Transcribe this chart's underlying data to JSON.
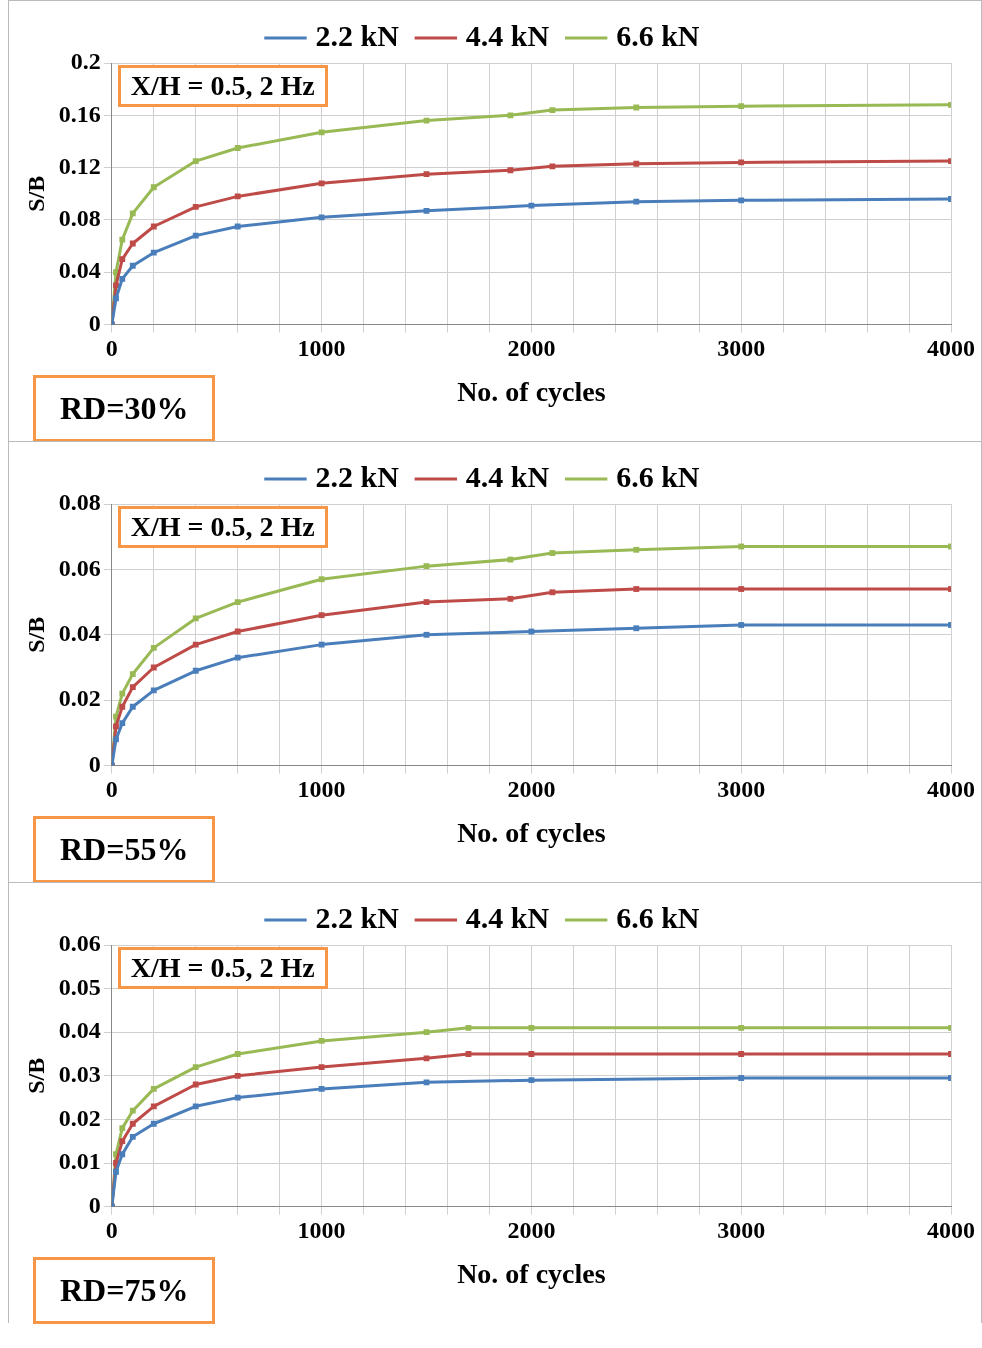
{
  "chart_data": [
    {
      "type": "line",
      "xlabel": "No. of cycles",
      "ylabel": "S/B",
      "annotations": [
        "X/H = 0.5, 2 Hz",
        "RD=30%"
      ],
      "legend": "top",
      "grid": true,
      "marker": "square",
      "line_style": "solid",
      "xlim": [
        0,
        4000
      ],
      "xticks": [
        0,
        {
          "value": 200,
          "label": null
        },
        {
          "value": 400,
          "label": null
        },
        {
          "value": 600,
          "label": null
        },
        {
          "value": 800,
          "label": null
        },
        1000,
        {
          "value": 1200,
          "label": null
        },
        {
          "value": 1400,
          "label": null
        },
        {
          "value": 1600,
          "label": null
        },
        {
          "value": 1800,
          "label": null
        },
        2000,
        {
          "value": 2200,
          "label": null
        },
        {
          "value": 2400,
          "label": null
        },
        {
          "value": 2600,
          "label": null
        },
        {
          "value": 2800,
          "label": null
        },
        3000,
        {
          "value": 3200,
          "label": null
        },
        {
          "value": 3400,
          "label": null
        },
        {
          "value": 3600,
          "label": null
        },
        {
          "value": 3800,
          "label": null
        },
        4000
      ],
      "ylim": [
        0,
        0.2
      ],
      "yticks": [
        0,
        0.04,
        0.08,
        0.12,
        0.16,
        0.2
      ],
      "series": [
        {
          "name": "2.2 kN",
          "color": "#4a7ebb",
          "x": [
            0,
            20,
            50,
            100,
            200,
            400,
            600,
            1000,
            1500,
            2000,
            2500,
            3000,
            4000
          ],
          "values": [
            0,
            0.02,
            0.035,
            0.045,
            0.055,
            0.068,
            0.075,
            0.082,
            0.087,
            0.091,
            0.094,
            0.095,
            0.096
          ]
        },
        {
          "name": "4.4 kN",
          "color": "#be4b48",
          "x": [
            0,
            20,
            50,
            100,
            200,
            400,
            600,
            1000,
            1500,
            1900,
            2100,
            2500,
            3000,
            4000
          ],
          "values": [
            0,
            0.03,
            0.05,
            0.062,
            0.075,
            0.09,
            0.098,
            0.108,
            0.115,
            0.118,
            0.121,
            0.123,
            0.124,
            0.125
          ]
        },
        {
          "name": "6.6 kN",
          "color": "#98b954",
          "x": [
            0,
            20,
            50,
            100,
            200,
            400,
            600,
            1000,
            1500,
            1900,
            2100,
            2500,
            3000,
            4000
          ],
          "values": [
            0,
            0.04,
            0.065,
            0.085,
            0.105,
            0.125,
            0.135,
            0.147,
            0.156,
            0.16,
            0.164,
            0.166,
            0.167,
            0.168
          ]
        }
      ]
    },
    {
      "type": "line",
      "xlabel": "No. of cycles",
      "ylabel": "S/B",
      "annotations": [
        "X/H = 0.5,  2 Hz",
        "RD=55%"
      ],
      "legend": "top",
      "grid": true,
      "marker": "square",
      "line_style": "solid",
      "xlim": [
        0,
        4000
      ],
      "xticks": [
        0,
        {
          "value": 200,
          "label": null
        },
        {
          "value": 400,
          "label": null
        },
        {
          "value": 600,
          "label": null
        },
        {
          "value": 800,
          "label": null
        },
        1000,
        {
          "value": 1200,
          "label": null
        },
        {
          "value": 1400,
          "label": null
        },
        {
          "value": 1600,
          "label": null
        },
        {
          "value": 1800,
          "label": null
        },
        2000,
        {
          "value": 2200,
          "label": null
        },
        {
          "value": 2400,
          "label": null
        },
        {
          "value": 2600,
          "label": null
        },
        {
          "value": 2800,
          "label": null
        },
        3000,
        {
          "value": 3200,
          "label": null
        },
        {
          "value": 3400,
          "label": null
        },
        {
          "value": 3600,
          "label": null
        },
        {
          "value": 3800,
          "label": null
        },
        4000
      ],
      "ylim": [
        0,
        0.08
      ],
      "yticks": [
        0,
        0.02,
        0.04,
        0.06,
        0.08
      ],
      "series": [
        {
          "name": "2.2 kN",
          "color": "#4a7ebb",
          "x": [
            0,
            20,
            50,
            100,
            200,
            400,
            600,
            1000,
            1500,
            2000,
            2500,
            3000,
            4000
          ],
          "values": [
            0,
            0.008,
            0.013,
            0.018,
            0.023,
            0.029,
            0.033,
            0.037,
            0.04,
            0.041,
            0.042,
            0.043,
            0.043
          ]
        },
        {
          "name": "4.4 kN",
          "color": "#be4b48",
          "x": [
            0,
            20,
            50,
            100,
            200,
            400,
            600,
            1000,
            1500,
            1900,
            2100,
            2500,
            3000,
            4000
          ],
          "values": [
            0,
            0.012,
            0.018,
            0.024,
            0.03,
            0.037,
            0.041,
            0.046,
            0.05,
            0.051,
            0.053,
            0.054,
            0.054,
            0.054
          ]
        },
        {
          "name": "6.6 kN",
          "color": "#98b954",
          "x": [
            0,
            20,
            50,
            100,
            200,
            400,
            600,
            1000,
            1500,
            1900,
            2100,
            2500,
            3000,
            4000
          ],
          "values": [
            0,
            0.015,
            0.022,
            0.028,
            0.036,
            0.045,
            0.05,
            0.057,
            0.061,
            0.063,
            0.065,
            0.066,
            0.067,
            0.067
          ]
        }
      ]
    },
    {
      "type": "line",
      "xlabel": "No. of cycles",
      "ylabel": "S/B",
      "annotations": [
        "X/H = 0.5,  2 Hz",
        "RD=75%"
      ],
      "legend": "top",
      "grid": true,
      "marker": "square",
      "line_style": "solid",
      "xlim": [
        0,
        4000
      ],
      "xticks": [
        0,
        {
          "value": 200,
          "label": null
        },
        {
          "value": 400,
          "label": null
        },
        {
          "value": 600,
          "label": null
        },
        {
          "value": 800,
          "label": null
        },
        1000,
        {
          "value": 1200,
          "label": null
        },
        {
          "value": 1400,
          "label": null
        },
        {
          "value": 1600,
          "label": null
        },
        {
          "value": 1800,
          "label": null
        },
        2000,
        {
          "value": 2200,
          "label": null
        },
        {
          "value": 2400,
          "label": null
        },
        {
          "value": 2600,
          "label": null
        },
        {
          "value": 2800,
          "label": null
        },
        3000,
        {
          "value": 3200,
          "label": null
        },
        {
          "value": 3400,
          "label": null
        },
        {
          "value": 3600,
          "label": null
        },
        {
          "value": 3800,
          "label": null
        },
        4000
      ],
      "ylim": [
        0,
        0.06
      ],
      "yticks": [
        0,
        0.01,
        0.02,
        0.03,
        0.04,
        0.05,
        0.06
      ],
      "series": [
        {
          "name": "2.2 kN",
          "color": "#4a7ebb",
          "x": [
            0,
            20,
            50,
            100,
            200,
            400,
            600,
            1000,
            1500,
            2000,
            3000,
            4000
          ],
          "values": [
            0,
            0.008,
            0.012,
            0.016,
            0.019,
            0.023,
            0.025,
            0.027,
            0.0285,
            0.029,
            0.0295,
            0.0295
          ]
        },
        {
          "name": "4.4 kN",
          "color": "#be4b48",
          "x": [
            0,
            20,
            50,
            100,
            200,
            400,
            600,
            1000,
            1500,
            1700,
            2000,
            3000,
            4000
          ],
          "values": [
            0,
            0.01,
            0.015,
            0.019,
            0.023,
            0.028,
            0.03,
            0.032,
            0.034,
            0.035,
            0.035,
            0.035,
            0.035
          ]
        },
        {
          "name": "6.6 kN",
          "color": "#98b954",
          "x": [
            0,
            20,
            50,
            100,
            200,
            400,
            600,
            1000,
            1500,
            1700,
            2000,
            3000,
            4000
          ],
          "values": [
            0,
            0.012,
            0.018,
            0.022,
            0.027,
            0.032,
            0.035,
            0.038,
            0.04,
            0.041,
            0.041,
            0.041,
            0.041
          ]
        }
      ]
    }
  ]
}
